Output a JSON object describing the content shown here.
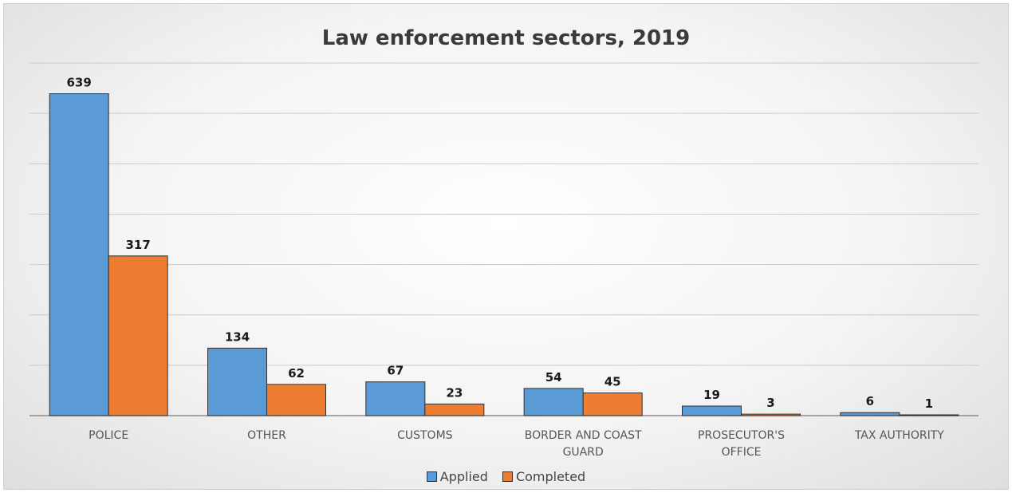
{
  "chart_data": {
    "type": "bar",
    "title": "Law enforcement sectors, 2019",
    "categories": [
      [
        "POLICE"
      ],
      [
        "OTHER"
      ],
      [
        "CUSTOMS"
      ],
      [
        "BORDER AND COAST",
        "GUARD"
      ],
      [
        "PROSECUTOR'S",
        "OFFICE"
      ],
      [
        "TAX AUTHORITY"
      ]
    ],
    "series": [
      {
        "name": "Applied",
        "color": "#5b9bd5",
        "values": [
          639,
          134,
          67,
          54,
          19,
          6
        ]
      },
      {
        "name": "Completed",
        "color": "#ed7d31",
        "values": [
          317,
          62,
          23,
          45,
          3,
          1
        ]
      }
    ],
    "ylim": [
      0,
      700
    ],
    "grid": true,
    "legend_position": "bottom"
  }
}
